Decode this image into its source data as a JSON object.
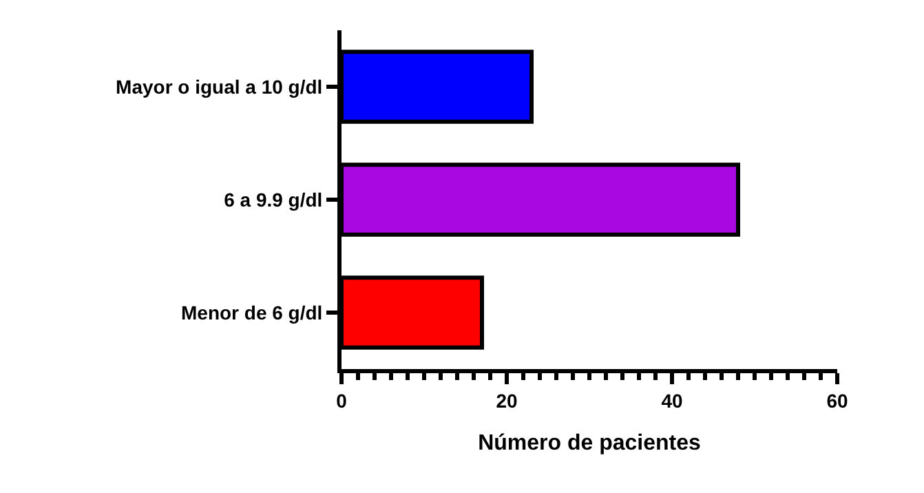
{
  "chart_data": {
    "type": "bar",
    "orientation": "horizontal",
    "xlabel": "Número de pacientes",
    "categories": [
      "Mayor o igual a 10 g/dl",
      "6 a 9.9 g/dl",
      "Menor de 6 g/dl"
    ],
    "values": [
      23,
      48,
      17
    ],
    "colors": [
      "#0000ff",
      "#aa08e0",
      "#ff0000"
    ],
    "xlim": [
      0,
      60
    ],
    "xticks": [
      0,
      {
        "value": 2,
        "label": null
      },
      {
        "value": 4,
        "label": null
      },
      {
        "value": 6,
        "label": null
      },
      {
        "value": 8,
        "label": null
      },
      {
        "value": 10,
        "label": null
      },
      {
        "value": 12,
        "label": null
      },
      {
        "value": 14,
        "label": null
      },
      {
        "value": 16,
        "label": null
      },
      {
        "value": 18,
        "label": null
      },
      20,
      {
        "value": 22,
        "label": null
      },
      {
        "value": 24,
        "label": null
      },
      {
        "value": 26,
        "label": null
      },
      {
        "value": 28,
        "label": null
      },
      {
        "value": 30,
        "label": null
      },
      {
        "value": 32,
        "label": null
      },
      {
        "value": 34,
        "label": null
      },
      {
        "value": 36,
        "label": null
      },
      {
        "value": 38,
        "label": null
      },
      40,
      {
        "value": 42,
        "label": null
      },
      {
        "value": 44,
        "label": null
      },
      {
        "value": 46,
        "label": null
      },
      {
        "value": 48,
        "label": null
      },
      {
        "value": 50,
        "label": null
      },
      {
        "value": 52,
        "label": null
      },
      {
        "value": 54,
        "label": null
      },
      {
        "value": 56,
        "label": null
      },
      {
        "value": 58,
        "label": null
      },
      60
    ],
    "grid": false
  }
}
